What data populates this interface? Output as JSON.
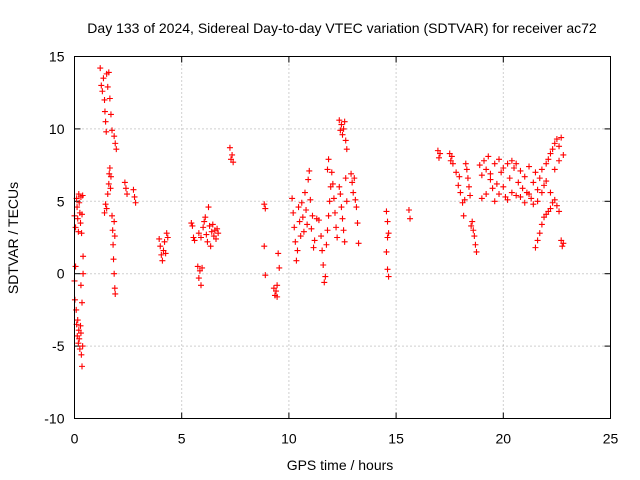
{
  "chart_data": {
    "type": "scatter",
    "title": "Day 133 of 2024, Sidereal Day-to-day VTEC variation (SDTVAR) for receiver ac72",
    "xlabel": "GPS time / hours",
    "ylabel": "SDTVAR / TECUs",
    "xlim": [
      0,
      25
    ],
    "ylim": [
      -10,
      15
    ],
    "xticks": [
      0,
      5,
      10,
      15,
      20,
      25
    ],
    "yticks": [
      -10,
      -5,
      0,
      5,
      10,
      15
    ],
    "xtick_labels": [
      "0",
      "5",
      "10",
      "15",
      "20",
      "25"
    ],
    "ytick_labels": [
      "-10",
      "-5",
      "0",
      "5",
      "10",
      "15"
    ],
    "grid": true,
    "marker": "+",
    "marker_color": "#ff0000",
    "series": [
      {
        "name": "ac72",
        "points": [
          [
            0.0,
            4.0
          ],
          [
            0.05,
            3.2
          ],
          [
            0.1,
            5.2
          ],
          [
            0.12,
            4.6
          ],
          [
            0.15,
            3.8
          ],
          [
            0.18,
            2.9
          ],
          [
            0.2,
            5.5
          ],
          [
            0.22,
            4.9
          ],
          [
            0.25,
            4.2
          ],
          [
            0.28,
            3.5
          ],
          [
            0.3,
            5.3
          ],
          [
            0.33,
            2.8
          ],
          [
            0.35,
            4.1
          ],
          [
            0.38,
            5.4
          ],
          [
            0.4,
            1.2
          ],
          [
            0.0,
            -0.5
          ],
          [
            0.02,
            -1.8
          ],
          [
            0.05,
            0.5
          ],
          [
            0.08,
            -2.5
          ],
          [
            0.1,
            -3.5
          ],
          [
            0.13,
            -4.3
          ],
          [
            0.15,
            -3.2
          ],
          [
            0.18,
            -4.8
          ],
          [
            0.2,
            -3.9
          ],
          [
            0.22,
            -4.5
          ],
          [
            0.25,
            -5.2
          ],
          [
            0.28,
            -3.6
          ],
          [
            0.3,
            -4.1
          ],
          [
            0.32,
            -5.6
          ],
          [
            0.35,
            -6.4
          ],
          [
            0.38,
            -5.0
          ],
          [
            0.3,
            -0.8
          ],
          [
            0.35,
            -2.0
          ],
          [
            0.4,
            0.0
          ],
          [
            1.2,
            14.2
          ],
          [
            1.25,
            13.0
          ],
          [
            1.3,
            12.6
          ],
          [
            1.35,
            13.5
          ],
          [
            1.4,
            12.0
          ],
          [
            1.42,
            11.2
          ],
          [
            1.45,
            10.5
          ],
          [
            1.48,
            9.8
          ],
          [
            1.5,
            13.8
          ],
          [
            1.55,
            12.9
          ],
          [
            1.6,
            13.9
          ],
          [
            1.65,
            12.1
          ],
          [
            1.7,
            11.0
          ],
          [
            1.75,
            9.9
          ],
          [
            1.4,
            4.2
          ],
          [
            1.45,
            4.8
          ],
          [
            1.5,
            4.5
          ],
          [
            1.55,
            5.5
          ],
          [
            1.6,
            6.2
          ],
          [
            1.62,
            6.9
          ],
          [
            1.65,
            7.3
          ],
          [
            1.68,
            5.9
          ],
          [
            1.7,
            6.7
          ],
          [
            1.75,
            4.0
          ],
          [
            1.78,
            3.0
          ],
          [
            1.8,
            2.0
          ],
          [
            1.82,
            1.0
          ],
          [
            1.85,
            0.0
          ],
          [
            1.88,
            -1.0
          ],
          [
            1.9,
            -1.4
          ],
          [
            1.85,
            3.6
          ],
          [
            1.88,
            2.6
          ],
          [
            1.85,
            9.5
          ],
          [
            1.9,
            9.0
          ],
          [
            1.95,
            8.6
          ],
          [
            2.35,
            6.3
          ],
          [
            2.4,
            5.9
          ],
          [
            2.45,
            5.5
          ],
          [
            2.75,
            5.8
          ],
          [
            2.8,
            5.3
          ],
          [
            2.85,
            4.9
          ],
          [
            3.95,
            2.4
          ],
          [
            4.0,
            1.9
          ],
          [
            4.05,
            1.3
          ],
          [
            4.1,
            0.9
          ],
          [
            4.15,
            1.6
          ],
          [
            4.2,
            2.2
          ],
          [
            4.25,
            1.4
          ],
          [
            4.3,
            2.8
          ],
          [
            4.35,
            2.5
          ],
          [
            5.45,
            3.5
          ],
          [
            5.5,
            3.3
          ],
          [
            5.55,
            2.5
          ],
          [
            5.6,
            2.3
          ],
          [
            5.75,
            0.5
          ],
          [
            5.8,
            -0.3
          ],
          [
            5.85,
            0.2
          ],
          [
            5.9,
            -0.8
          ],
          [
            5.95,
            0.4
          ],
          [
            5.8,
            2.8
          ],
          [
            5.9,
            2.5
          ],
          [
            6.0,
            3.2
          ],
          [
            6.05,
            3.6
          ],
          [
            6.1,
            3.9
          ],
          [
            6.15,
            2.7
          ],
          [
            6.2,
            2.2
          ],
          [
            6.25,
            4.6
          ],
          [
            6.3,
            3.3
          ],
          [
            6.35,
            1.9
          ],
          [
            6.4,
            2.9
          ],
          [
            6.45,
            3.4
          ],
          [
            6.5,
            2.6
          ],
          [
            6.55,
            3.0
          ],
          [
            6.6,
            2.4
          ],
          [
            6.65,
            3.1
          ],
          [
            6.7,
            2.8
          ],
          [
            7.25,
            8.7
          ],
          [
            7.3,
            7.9
          ],
          [
            7.35,
            8.2
          ],
          [
            7.4,
            7.7
          ],
          [
            8.85,
            4.8
          ],
          [
            8.9,
            4.5
          ],
          [
            8.85,
            1.9
          ],
          [
            8.9,
            -0.1
          ],
          [
            9.3,
            -1.0
          ],
          [
            9.35,
            -1.5
          ],
          [
            9.4,
            -1.2
          ],
          [
            9.45,
            -0.8
          ],
          [
            9.5,
            1.4
          ],
          [
            9.55,
            0.4
          ],
          [
            9.45,
            -1.6
          ],
          [
            10.15,
            5.2
          ],
          [
            10.2,
            4.2
          ],
          [
            10.25,
            3.2
          ],
          [
            10.3,
            2.2
          ],
          [
            10.35,
            0.9
          ],
          [
            10.4,
            1.6
          ],
          [
            10.45,
            4.6
          ],
          [
            10.5,
            3.6
          ],
          [
            10.55,
            2.6
          ],
          [
            10.6,
            4.9
          ],
          [
            10.65,
            3.9
          ],
          [
            10.7,
            2.9
          ],
          [
            10.75,
            5.6
          ],
          [
            10.8,
            4.4
          ],
          [
            10.85,
            3.4
          ],
          [
            10.9,
            6.5
          ],
          [
            10.95,
            7.1
          ],
          [
            11.0,
            5.1
          ],
          [
            11.05,
            3.1
          ],
          [
            11.1,
            4.0
          ],
          [
            11.15,
            1.8
          ],
          [
            11.2,
            2.3
          ],
          [
            11.3,
            3.8
          ],
          [
            11.4,
            3.7
          ],
          [
            11.5,
            2.6
          ],
          [
            11.55,
            1.6
          ],
          [
            11.6,
            0.6
          ],
          [
            11.65,
            -0.6
          ],
          [
            11.7,
            -0.2
          ],
          [
            11.75,
            2.0
          ],
          [
            11.8,
            3.0
          ],
          [
            11.85,
            4.0
          ],
          [
            11.9,
            5.0
          ],
          [
            11.95,
            6.0
          ],
          [
            12.0,
            7.0
          ],
          [
            12.05,
            6.2
          ],
          [
            12.1,
            5.2
          ],
          [
            12.15,
            4.2
          ],
          [
            12.2,
            3.2
          ],
          [
            12.25,
            2.5
          ],
          [
            11.85,
            7.9
          ],
          [
            11.8,
            7.2
          ],
          [
            12.35,
            10.6
          ],
          [
            12.4,
            9.9
          ],
          [
            12.45,
            10.3
          ],
          [
            12.5,
            9.6
          ],
          [
            12.55,
            10.0
          ],
          [
            12.6,
            10.5
          ],
          [
            12.65,
            9.2
          ],
          [
            12.7,
            8.6
          ],
          [
            12.35,
            6.0
          ],
          [
            12.4,
            5.5
          ],
          [
            12.45,
            4.6
          ],
          [
            12.5,
            3.8
          ],
          [
            12.55,
            3.0
          ],
          [
            12.6,
            2.2
          ],
          [
            12.65,
            6.6
          ],
          [
            12.7,
            5.0
          ],
          [
            12.9,
            6.9
          ],
          [
            12.95,
            6.3
          ],
          [
            13.0,
            5.6
          ],
          [
            13.05,
            6.6
          ],
          [
            13.1,
            5.1
          ],
          [
            13.15,
            4.6
          ],
          [
            13.2,
            3.5
          ],
          [
            13.25,
            2.1
          ],
          [
            14.55,
            4.3
          ],
          [
            14.6,
            3.6
          ],
          [
            14.65,
            2.8
          ],
          [
            14.55,
            1.5
          ],
          [
            14.6,
            0.3
          ],
          [
            14.65,
            -0.2
          ],
          [
            14.6,
            2.5
          ],
          [
            15.6,
            4.4
          ],
          [
            15.65,
            3.8
          ],
          [
            16.95,
            8.5
          ],
          [
            17.0,
            8.0
          ],
          [
            17.05,
            8.3
          ],
          [
            17.5,
            8.3
          ],
          [
            17.55,
            7.8
          ],
          [
            17.6,
            8.1
          ],
          [
            17.65,
            7.6
          ],
          [
            17.8,
            7.0
          ],
          [
            17.9,
            6.1
          ],
          [
            17.95,
            6.7
          ],
          [
            18.0,
            5.6
          ],
          [
            18.1,
            4.9
          ],
          [
            18.15,
            4.0
          ],
          [
            18.2,
            5.1
          ],
          [
            18.25,
            7.6
          ],
          [
            18.3,
            7.2
          ],
          [
            18.35,
            6.6
          ],
          [
            18.4,
            6.0
          ],
          [
            18.45,
            5.4
          ],
          [
            18.5,
            3.3
          ],
          [
            18.55,
            3.6
          ],
          [
            18.6,
            3.0
          ],
          [
            18.65,
            2.6
          ],
          [
            18.7,
            2.0
          ],
          [
            18.75,
            1.5
          ],
          [
            18.9,
            7.5
          ],
          [
            19.0,
            6.8
          ],
          [
            19.1,
            7.8
          ],
          [
            19.2,
            7.2
          ],
          [
            19.3,
            8.1
          ],
          [
            19.4,
            6.5
          ],
          [
            19.5,
            5.9
          ],
          [
            19.6,
            7.6
          ],
          [
            19.7,
            6.2
          ],
          [
            19.8,
            5.5
          ],
          [
            19.9,
            7.0
          ],
          [
            20.0,
            6.0
          ],
          [
            20.1,
            5.3
          ],
          [
            20.2,
            7.6
          ],
          [
            20.3,
            6.6
          ],
          [
            20.4,
            7.8
          ],
          [
            20.5,
            7.3
          ],
          [
            20.6,
            5.4
          ],
          [
            20.7,
            6.3
          ],
          [
            20.8,
            7.1
          ],
          [
            20.9,
            5.9
          ],
          [
            21.0,
            6.7
          ],
          [
            21.1,
            5.6
          ],
          [
            21.2,
            7.4
          ],
          [
            21.3,
            5.2
          ],
          [
            21.4,
            6.3
          ],
          [
            21.5,
            7.0
          ],
          [
            21.6,
            5.8
          ],
          [
            21.7,
            6.6
          ],
          [
            21.8,
            7.2
          ],
          [
            21.9,
            6.1
          ],
          [
            22.0,
            7.6
          ],
          [
            22.1,
            7.9
          ],
          [
            22.2,
            8.3
          ],
          [
            22.3,
            8.6
          ],
          [
            22.4,
            9.0
          ],
          [
            22.5,
            9.3
          ],
          [
            22.6,
            8.8
          ],
          [
            22.7,
            9.4
          ],
          [
            22.8,
            8.2
          ],
          [
            19.0,
            5.2
          ],
          [
            19.2,
            5.5
          ],
          [
            19.4,
            6.9
          ],
          [
            19.6,
            5.0
          ],
          [
            19.8,
            7.9
          ],
          [
            20.0,
            7.3
          ],
          [
            20.2,
            5.1
          ],
          [
            20.4,
            5.6
          ],
          [
            20.6,
            7.6
          ],
          [
            20.8,
            5.3
          ],
          [
            21.0,
            4.9
          ],
          [
            21.2,
            5.5
          ],
          [
            21.4,
            4.8
          ],
          [
            21.6,
            5.0
          ],
          [
            21.8,
            5.6
          ],
          [
            22.0,
            6.4
          ],
          [
            22.2,
            5.6
          ],
          [
            22.4,
            7.2
          ],
          [
            22.6,
            7.8
          ],
          [
            21.5,
            1.8
          ],
          [
            21.6,
            2.3
          ],
          [
            21.7,
            2.8
          ],
          [
            21.8,
            3.4
          ],
          [
            21.9,
            3.9
          ],
          [
            22.0,
            4.1
          ],
          [
            22.1,
            4.3
          ],
          [
            22.2,
            4.5
          ],
          [
            22.3,
            4.9
          ],
          [
            22.4,
            5.1
          ],
          [
            22.5,
            4.7
          ],
          [
            22.6,
            4.3
          ],
          [
            22.7,
            2.3
          ],
          [
            22.75,
            1.9
          ],
          [
            22.8,
            2.1
          ]
        ]
      }
    ]
  }
}
